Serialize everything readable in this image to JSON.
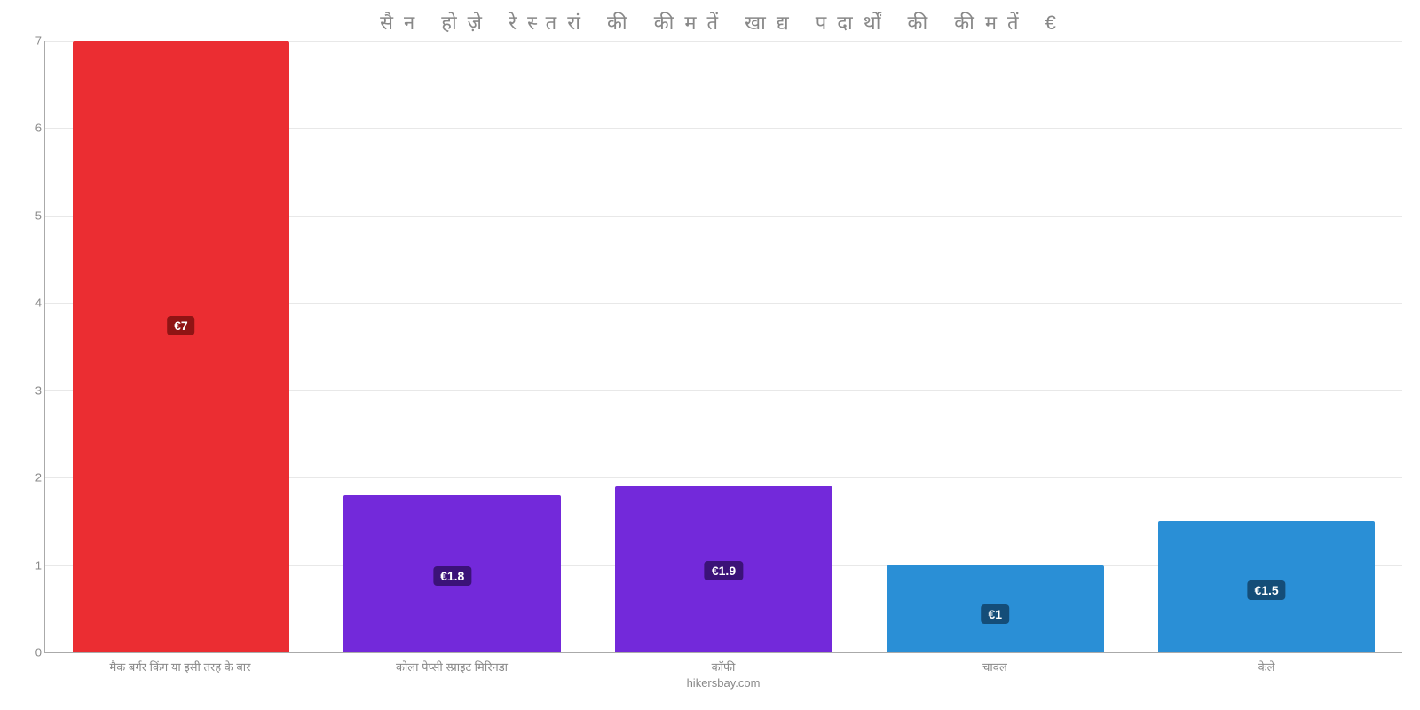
{
  "chart": {
    "type": "bar",
    "title": "सैन होज़े रेस्तरां की कीमतें खाद्य पदार्थों की कीमतें €",
    "title_fontsize": 22,
    "title_color": "#888888",
    "source": "hikersbay.com",
    "background_color": "#ffffff",
    "grid_color": "#e8e8e8",
    "axis_color": "#aaaaaa",
    "label_color": "#888888",
    "xlabel_fontsize": 13,
    "ylabel_fontsize": 13,
    "ylim": [
      0,
      7
    ],
    "yticks": [
      0,
      1,
      2,
      3,
      4,
      5,
      6,
      7
    ],
    "bar_width_pct": 80,
    "categories": [
      "मैक बर्गर किंग या इसी तरह के बार",
      "कोला पेप्सी स्प्राइट मिरिनडा",
      "कॉफी",
      "चावल",
      "केले"
    ],
    "values": [
      7,
      1.8,
      1.9,
      1,
      1.5
    ],
    "value_labels": [
      "€7",
      "€1.8",
      "€1.9",
      "€1",
      "€1.5"
    ],
    "bar_colors": [
      "#eb2d32",
      "#7329da",
      "#7329da",
      "#2a8fd6",
      "#2a8fd6"
    ],
    "badge_colors": [
      "#8f1414",
      "#3b1278",
      "#3b1278",
      "#144d78",
      "#144d78"
    ]
  }
}
